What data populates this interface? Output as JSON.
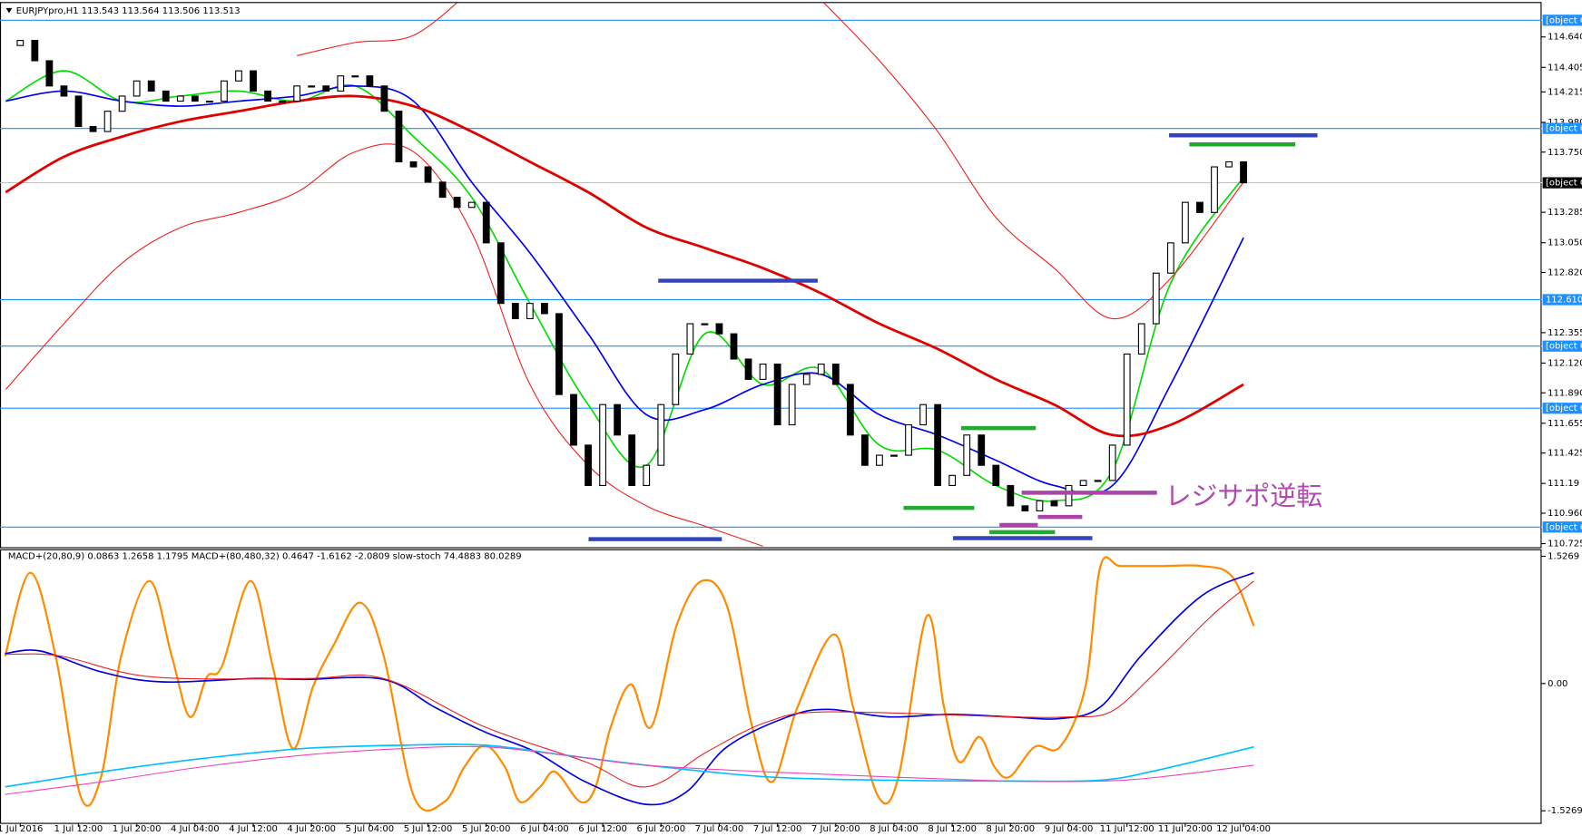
{
  "chart_data": [
    {
      "type": "candlestick",
      "title": "EURJPYpro,H1  113.543 113.564 113.506 113.513",
      "annotation": "レジサポ逆転",
      "closes": [
        114.574,
        114.613,
        114.456,
        114.261,
        114.183,
        113.948,
        113.909,
        114.066,
        114.183,
        114.3,
        114.222,
        114.144,
        114.183,
        114.144,
        114.144,
        114.3,
        114.378,
        114.222,
        114.144,
        114.144,
        114.261,
        114.261,
        114.222,
        114.339,
        114.339,
        114.261,
        114.066,
        113.675,
        113.636,
        113.518,
        113.401,
        113.323,
        113.362,
        113.049,
        112.581,
        112.463,
        112.581,
        112.502,
        111.877,
        111.486,
        111.174,
        111.799,
        111.564,
        111.174,
        111.33,
        111.799,
        112.19,
        112.424,
        112.424,
        112.346,
        112.151,
        111.994,
        112.112,
        111.643,
        111.955,
        112.033,
        112.112,
        111.955,
        111.564,
        111.33,
        111.408,
        111.408,
        111.643,
        111.799,
        111.174,
        111.252,
        111.564,
        111.33,
        111.174,
        111.017,
        110.978,
        111.056,
        111.017,
        111.174,
        111.213,
        111.213,
        111.486,
        112.19,
        112.424,
        112.815,
        113.049,
        113.362,
        113.284,
        113.636,
        113.675,
        113.513
      ],
      "series": [
        {
          "color": "#00dd00",
          "x": [
            -1,
            3,
            7,
            11,
            15,
            19,
            23,
            27,
            31,
            35,
            39,
            43,
            47,
            51,
            55,
            59,
            63,
            67,
            71,
            75,
            79,
            84
          ],
          "values": [
            114.144,
            114.378,
            114.144,
            114.183,
            114.222,
            114.144,
            114.261,
            113.87,
            113.401,
            112.581,
            111.799,
            111.33,
            112.346,
            111.955,
            112.072,
            111.486,
            111.447,
            111.174,
            111.056,
            111.291,
            112.737,
            113.558
          ]
        },
        {
          "color": "#0000ee",
          "x": [
            -1,
            3,
            7,
            11,
            15,
            19,
            23,
            27,
            31,
            35,
            39,
            43,
            47,
            51,
            55,
            59,
            63,
            67,
            71,
            75,
            79,
            84
          ],
          "values": [
            114.144,
            114.222,
            114.144,
            114.105,
            114.144,
            114.183,
            114.261,
            114.144,
            113.518,
            112.971,
            112.346,
            111.721,
            111.76,
            111.955,
            112.033,
            111.721,
            111.564,
            111.369,
            111.174,
            111.174,
            111.955,
            113.089
          ]
        },
        {
          "color": "#e00000",
          "x": [
            -1,
            3,
            7,
            11,
            15,
            19,
            23,
            27,
            31,
            35,
            39,
            43,
            47,
            51,
            55,
            59,
            63,
            67,
            71,
            75,
            79,
            84
          ],
          "values": [
            113.44,
            113.714,
            113.87,
            113.987,
            114.066,
            114.144,
            114.183,
            114.105,
            113.909,
            113.675,
            113.44,
            113.167,
            113.01,
            112.854,
            112.659,
            112.424,
            112.229,
            111.994,
            111.799,
            111.564,
            111.643,
            111.955
          ]
        },
        {
          "color": "#ee2222",
          "x": [
            -1,
            3,
            7,
            11,
            15,
            19,
            23,
            27,
            31,
            35,
            39,
            43,
            47,
            51,
            55,
            59,
            63,
            67,
            71,
            75,
            79,
            84
          ],
          "values": [
            null,
            null,
            null,
            null,
            null,
            114.495,
            114.597,
            114.652,
            115.003,
            null,
            null,
            null,
            null,
            null,
            114.925,
            114.456,
            113.909,
            113.245,
            112.854,
            112.463,
            112.776,
            113.518
          ]
        },
        {
          "color": "#ee2222",
          "x": [
            -1,
            3,
            7,
            11,
            15,
            19,
            23,
            27,
            31,
            35,
            39,
            43,
            47,
            51,
            55,
            59,
            63,
            67,
            71,
            75,
            79,
            84
          ],
          "values": [
            111.916,
            112.424,
            112.893,
            113.167,
            113.284,
            113.44,
            113.753,
            113.753,
            113.128,
            111.955,
            111.33,
            111.017,
            110.861,
            110.705,
            null,
            null,
            null,
            null,
            null,
            null,
            null,
            null
          ]
        }
      ],
      "levels": [
        {
          "value": 114.769,
          "color": "#1e90ff",
          "label_color": "#1e90ff"
        },
        {
          "value": 113.933,
          "color": "#1e90ff",
          "label_color": "#1e90ff"
        },
        {
          "value": 113.513,
          "color": "#f2b0b0",
          "label_color": "#000000"
        },
        {
          "value": 112.61,
          "label": "112.610",
          "color": "#1e90ff",
          "label_color": "#1e90ff"
        },
        {
          "value": 112.251,
          "color": "#1e90ff",
          "label_color": "#1e90ff"
        },
        {
          "value": 111.771,
          "color": "#1e90ff",
          "label_color": "#1e90ff"
        },
        {
          "value": 110.853,
          "color": "#1e90ff",
          "label_color": "#1e90ff"
        }
      ],
      "candle_up": "#ffffff",
      "candle_down": "#000000",
      "ylim": [
        110.697,
        114.902
      ],
      "yticks": [
        {
          "value": 114.64,
          "label": "114.640"
        },
        114.405,
        114.215,
        {
          "value": 113.98,
          "label": "113.980"
        },
        {
          "value": 113.75,
          "label": "113.750"
        },
        113.285,
        {
          "value": 113.05,
          "label": "113.050"
        },
        {
          "value": 112.82,
          "label": "112.820"
        },
        112.355,
        {
          "value": 112.12,
          "label": "112.120"
        },
        {
          "value": 111.89,
          "label": "111.890"
        },
        111.655,
        111.425,
        111.19,
        {
          "value": 110.96,
          "label": "110.960"
        },
        110.725
      ],
      "xlim": [
        -1.39,
        104.47
      ],
      "xticks": [
        {
          "value": 0,
          "label": "1 Jul 2016"
        },
        {
          "value": 4,
          "label": "1 Jul 12:00"
        },
        {
          "value": 8,
          "label": "1 Jul 20:00"
        },
        {
          "value": 12,
          "label": "4 Jul 04:00"
        },
        {
          "value": 16,
          "label": "4 Jul 12:00"
        },
        {
          "value": 20,
          "label": "4 Jul 20:00"
        },
        {
          "value": 24,
          "label": "5 Jul 04:00"
        },
        {
          "value": 28,
          "label": "5 Jul 12:00"
        },
        {
          "value": 32,
          "label": "5 Jul 20:00"
        },
        {
          "value": 36,
          "label": "6 Jul 04:00"
        },
        {
          "value": 40,
          "label": "6 Jul 12:00"
        },
        {
          "value": 44,
          "label": "6 Jul 20:00"
        },
        {
          "value": 48,
          "label": "7 Jul 04:00"
        },
        {
          "value": 52,
          "label": "7 Jul 12:00"
        },
        {
          "value": 56,
          "label": "7 Jul 20:00"
        },
        {
          "value": 60,
          "label": "8 Jul 04:00"
        },
        {
          "value": 64,
          "label": "8 Jul 12:00"
        },
        {
          "value": 68,
          "label": "8 Jul 20:00"
        },
        {
          "value": 72,
          "label": "9 Jul 04:00"
        },
        {
          "value": 76,
          "label": "11 Jul 12:00"
        },
        {
          "value": 80,
          "label": "11 Jul 20:00"
        },
        {
          "value": 84,
          "label": "12 Jul 04:00"
        }
      ]
    },
    {
      "type": "line",
      "title": "MACD+(20,80,9) 0.0863 1.2658 1.1795  MACD+(80,480,32) 0.4647 -1.6162 -2.0809  slow-stoch 74.4883 80.0289",
      "series": [
        {
          "color": "#ff8c00",
          "x": [
            -1.04,
            0.69,
            2.43,
            4.16,
            5.55,
            6.93,
            8.87,
            10.4,
            11.65,
            12.82,
            13.86,
            15.81,
            17.33,
            18.72,
            20.1,
            21.49,
            23.36,
            24.96,
            27.04,
            29.12,
            30.5,
            31.89,
            33.28,
            34.32,
            35.7,
            36.74,
            38.47,
            39.51,
            40.55,
            41.94,
            43.33,
            45.06,
            46.79,
            48.53,
            50.26,
            51.65,
            53.38,
            55.88,
            57.19,
            58.93,
            60.31,
            62.25,
            63.43,
            64.47,
            65.86,
            66.9,
            67.94,
            69.67,
            71.4,
            73.14,
            74.18,
            75.56,
            78.34,
            81.11,
            83.19,
            84.71
          ],
          "values": [
            0.33,
            1.33,
            0.33,
            -1.36,
            -1.12,
            0.33,
            1.23,
            0.33,
            -0.4,
            0.08,
            0.21,
            1.23,
            0.21,
            -0.78,
            -0.04,
            0.45,
            0.97,
            0.33,
            -1.36,
            -1.42,
            -1.0,
            -0.74,
            -1.0,
            -1.42,
            -1.24,
            -1.06,
            -1.42,
            -1.24,
            -0.52,
            -0.01,
            -0.52,
            0.69,
            1.23,
            0.93,
            -0.52,
            -1.18,
            -0.28,
            0.59,
            -0.28,
            -1.36,
            -1.12,
            0.81,
            -0.28,
            -0.94,
            -0.64,
            -1.0,
            -1.12,
            -0.76,
            -0.76,
            -0.04,
            1.41,
            1.41,
            1.41,
            1.41,
            1.29,
            0.69
          ]
        },
        {
          "color": "#0000dd",
          "x": [
            -1.04,
            1.39,
            5.55,
            9.71,
            15.94,
            19.41,
            24.96,
            28.42,
            31.89,
            35.36,
            38.82,
            42.98,
            45.75,
            48.53,
            52.69,
            55.46,
            59.62,
            63.78,
            67.94,
            71.4,
            74.18,
            76.95,
            81.11,
            84.71
          ],
          "values": [
            0.36,
            0.39,
            0.14,
            0.02,
            0.06,
            0.05,
            0.05,
            -0.28,
            -0.58,
            -0.82,
            -1.18,
            -1.45,
            -1.3,
            -0.76,
            -0.4,
            -0.31,
            -0.4,
            -0.37,
            -0.4,
            -0.42,
            -0.28,
            0.33,
            1.05,
            1.33
          ]
        },
        {
          "color": "#ee2222",
          "x": [
            -1.04,
            2.77,
            9.01,
            19.41,
            24.96,
            31.89,
            38.82,
            42.98,
            47.14,
            51.3,
            55.46,
            67.94,
            72.09,
            74.87,
            77.64,
            81.8,
            84.71
          ],
          "values": [
            0.35,
            0.33,
            0.08,
            0.06,
            0.06,
            -0.52,
            -0.94,
            -1.24,
            -0.82,
            -0.46,
            -0.34,
            -0.4,
            -0.4,
            -0.34,
            0.08,
            0.81,
            1.23
          ]
        },
        {
          "color": "#00bfff",
          "x": [
            -1.04,
            5.55,
            12.48,
            19.41,
            26.34,
            31.89,
            37.43,
            42.98,
            51.3,
            59.62,
            67.94,
            74.18,
            78.34,
            84.71
          ],
          "values": [
            -1.24,
            -1.06,
            -0.9,
            -0.78,
            -0.74,
            -0.74,
            -0.86,
            -0.98,
            -1.12,
            -1.16,
            -1.17,
            -1.16,
            -1.03,
            -0.76
          ]
        },
        {
          "color": "#ee44bb",
          "x": [
            -1.04,
            5.55,
            12.48,
            19.41,
            26.34,
            31.89,
            37.43,
            42.98,
            51.3,
            59.62,
            67.94,
            74.18,
            78.34,
            84.71
          ],
          "values": [
            -1.33,
            -1.18,
            -1.0,
            -0.86,
            -0.78,
            -0.76,
            -0.86,
            -0.98,
            -1.06,
            -1.12,
            -1.17,
            -1.17,
            -1.12,
            -0.98
          ]
        }
      ],
      "ylim": [
        -1.672,
        1.599
      ],
      "yticks": [
        1.5269,
        {
          "value": 0,
          "label": "0.00"
        },
        -1.5269
      ],
      "xlim": [
        -1.39,
        104.47
      ]
    }
  ]
}
